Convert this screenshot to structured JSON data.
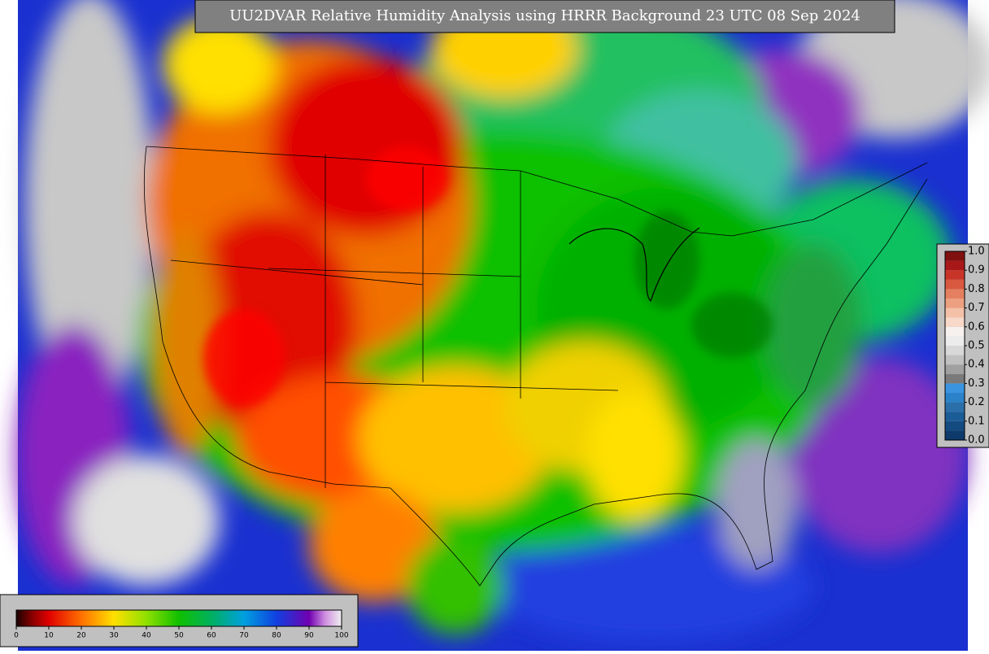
{
  "title": "UU2DVAR Relative Humidity Analysis using HRRR Background 23 UTC 08 Sep 2024",
  "humidity_scale": {
    "range": [
      0,
      100
    ],
    "ticks": [
      0,
      10,
      20,
      30,
      40,
      50,
      60,
      70,
      80,
      90,
      100
    ]
  },
  "observation_scale": {
    "range": [
      0,
      1
    ],
    "ticks": [
      {
        "value": 0,
        "label": "0.0"
      },
      {
        "value": 0.1,
        "label": "0.1"
      },
      {
        "value": 0.2,
        "label": "0.2"
      },
      {
        "value": 0.3,
        "label": "0.3"
      },
      {
        "value": 0.4,
        "label": "0.4"
      },
      {
        "value": 0.5,
        "label": "0.5"
      },
      {
        "value": 0.6,
        "label": "0.6"
      },
      {
        "value": 0.7,
        "label": "0.7"
      },
      {
        "value": 0.8,
        "label": "0.8"
      },
      {
        "value": 0.9,
        "label": "0.9"
      },
      {
        "value": 1,
        "label": "1.0"
      }
    ]
  }
}
